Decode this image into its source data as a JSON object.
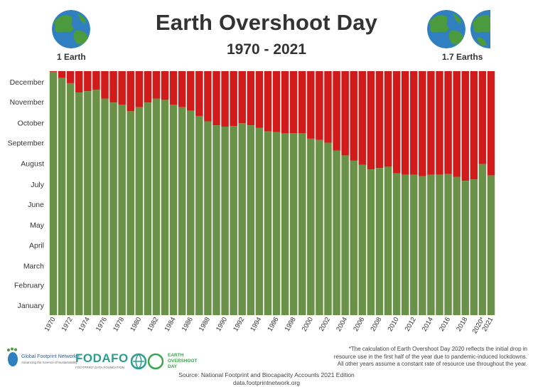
{
  "header": {
    "title": "Earth Overshoot Day",
    "subtitle": "1970 - 2021",
    "left_label": "1 Earth",
    "right_label": "1.7 Earths"
  },
  "colors": {
    "green": "#6a9148",
    "red": "#d11a1a",
    "ocean": "#2f7fc1",
    "land": "#4c9a3e"
  },
  "chart_data": {
    "type": "bar",
    "stacked": true,
    "y_axis": {
      "months": [
        "January",
        "February",
        "March",
        "April",
        "May",
        "June",
        "July",
        "August",
        "September",
        "October",
        "November",
        "December"
      ],
      "range": [
        0,
        365
      ]
    },
    "x": [
      1970,
      1971,
      1972,
      1973,
      1974,
      1975,
      1976,
      1977,
      1978,
      1979,
      1980,
      1981,
      1982,
      1983,
      1984,
      1985,
      1986,
      1987,
      1988,
      1989,
      1990,
      1991,
      1992,
      1993,
      1994,
      1995,
      1996,
      1997,
      1998,
      1999,
      2000,
      2001,
      2002,
      2003,
      2004,
      2005,
      2006,
      2007,
      2008,
      2009,
      2010,
      2011,
      2012,
      2013,
      2014,
      2015,
      2016,
      2017,
      2018,
      2019,
      2020,
      2021
    ],
    "x_tick_labels": [
      "1970",
      "1972",
      "1974",
      "1976",
      "1978",
      "1980",
      "1982",
      "1984",
      "1986",
      "1988",
      "1990",
      "1992",
      "1994",
      "1996",
      "1998",
      "2000",
      "2002",
      "2004",
      "2006",
      "2008",
      "2010",
      "2012",
      "2014",
      "2016",
      "2018",
      "2020*",
      "2021"
    ],
    "series": [
      {
        "color": "green",
        "values": [
          364,
          355,
          347,
          333,
          335,
          337,
          324,
          318,
          315,
          305,
          311,
          318,
          324,
          322,
          315,
          311,
          306,
          298,
          290,
          284,
          282,
          283,
          287,
          284,
          280,
          275,
          274,
          272,
          272,
          272,
          264,
          262,
          258,
          246,
          239,
          231,
          225,
          218,
          220,
          222,
          212,
          210,
          210,
          208,
          210,
          210,
          211,
          207,
          201,
          203,
          226,
          209
        ]
      },
      {
        "color": "red",
        "values": [
          1,
          10,
          18,
          32,
          30,
          28,
          41,
          47,
          50,
          60,
          54,
          47,
          41,
          43,
          50,
          54,
          59,
          67,
          75,
          81,
          83,
          82,
          78,
          81,
          85,
          90,
          91,
          93,
          93,
          93,
          101,
          103,
          107,
          119,
          126,
          134,
          140,
          147,
          145,
          143,
          153,
          155,
          155,
          157,
          155,
          155,
          154,
          158,
          164,
          162,
          139,
          156
        ]
      }
    ]
  },
  "footnote": {
    "line1": "*The calculation of Earth Overshoot Day 2020 reflects the initial drop in",
    "line2": "resource use in the first half of the year due to pandemic-induced lockdowns.",
    "line3": "All other years assume a constant rate of resource use throughout the year."
  },
  "source": {
    "line1": "Source: National Footprint and Biocapacity Accounts 2021 Edition",
    "line2": "data.footprintnetwork.org"
  },
  "logos": {
    "gfn_name": "Global Footprint Network®",
    "gfn_tagline": "Advancing the Science of Sustainability",
    "fodafo_name": "FODAFO",
    "fodafo_tagline": "FOOTPRINT DATA FOUNDATION",
    "eod_line1": "EARTH",
    "eod_line2": "OVERSHOOT",
    "eod_line3": "DAY"
  }
}
